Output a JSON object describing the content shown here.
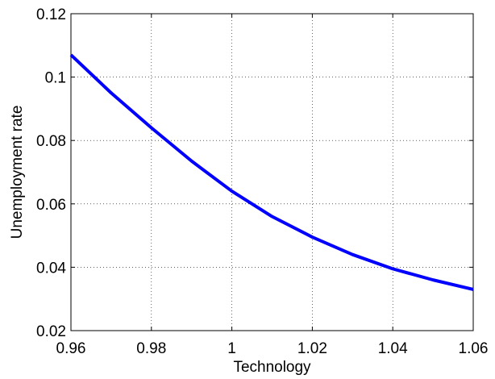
{
  "chart_data": {
    "type": "line",
    "title": "",
    "xlabel": "Technology",
    "ylabel": "Unemployment rate",
    "xlim": [
      0.96,
      1.06
    ],
    "ylim": [
      0.02,
      0.12
    ],
    "grid": true,
    "x_ticks": [
      "0.96",
      "0.98",
      "1",
      "1.02",
      "1.04",
      "1.06"
    ],
    "y_ticks": [
      "0.02",
      "0.04",
      "0.06",
      "0.08",
      "0.1",
      "0.12"
    ],
    "series": [
      {
        "color": "#0000ff",
        "x": [
          0.96,
          0.97,
          0.98,
          0.99,
          1.0,
          1.01,
          1.02,
          1.03,
          1.04,
          1.05,
          1.06
        ],
        "y": [
          0.107,
          0.095,
          0.084,
          0.0735,
          0.064,
          0.056,
          0.0495,
          0.044,
          0.0395,
          0.036,
          0.033
        ]
      }
    ]
  }
}
